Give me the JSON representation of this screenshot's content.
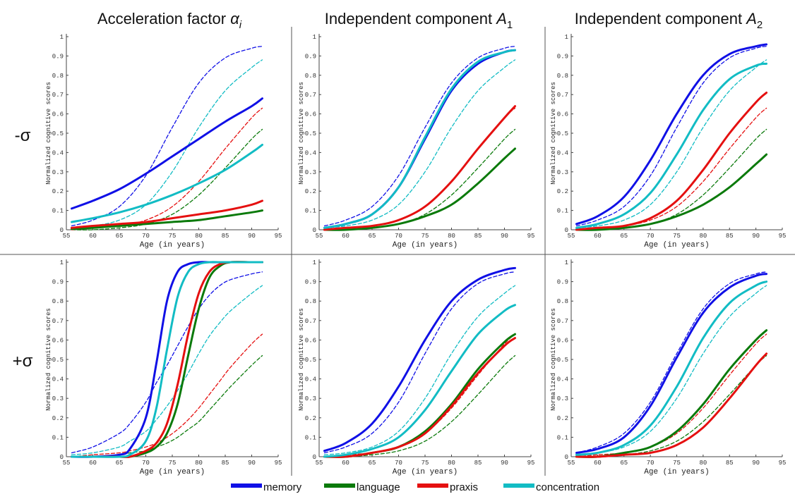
{
  "column_titles": [
    {
      "text": "Acceleration factor ",
      "symbol": "α",
      "sub": "i"
    },
    {
      "text": "Independent component ",
      "symbol": "A",
      "sub": "1"
    },
    {
      "text": "Independent component ",
      "symbol": "A",
      "sub": "2"
    }
  ],
  "row_labels": [
    "-σ",
    "+σ"
  ],
  "legend": [
    {
      "label": "memory",
      "color": "#1010e6"
    },
    {
      "label": "language",
      "color": "#0b7a0b"
    },
    {
      "label": "praxis",
      "color": "#e51010"
    },
    {
      "label": "concentration",
      "color": "#12bcc4"
    }
  ],
  "chart_data": [
    {
      "type": "line",
      "row": "-σ",
      "title": "Acceleration factor αi",
      "xlabel": "Age (in years)",
      "ylabel": "Normalized cognitive scores",
      "xlim": [
        55,
        95
      ],
      "ylim": [
        0,
        1
      ],
      "xticks": [
        "55",
        "60",
        "65",
        "70",
        "75",
        "80",
        "85",
        "90",
        "95"
      ],
      "yticks": [
        "0",
        "0.1",
        "0.2",
        "0.3",
        "0.4",
        "0.5",
        "0.6",
        "0.7",
        "0.8",
        "0.9",
        "1"
      ],
      "x": [
        56,
        60,
        65,
        70,
        75,
        80,
        85,
        90,
        92
      ],
      "series": [
        {
          "name": "memory",
          "style": "solid",
          "values": [
            0.11,
            0.15,
            0.21,
            0.29,
            0.38,
            0.47,
            0.56,
            0.64,
            0.68
          ]
        },
        {
          "name": "memory",
          "style": "dashed",
          "values": [
            0.02,
            0.05,
            0.12,
            0.28,
            0.53,
            0.76,
            0.89,
            0.94,
            0.95
          ]
        },
        {
          "name": "language",
          "style": "solid",
          "values": [
            0.005,
            0.01,
            0.02,
            0.03,
            0.04,
            0.05,
            0.07,
            0.09,
            0.1
          ]
        },
        {
          "name": "language",
          "style": "dashed",
          "values": [
            0.0,
            0.0,
            0.01,
            0.03,
            0.08,
            0.18,
            0.32,
            0.47,
            0.52
          ]
        },
        {
          "name": "praxis",
          "style": "solid",
          "values": [
            0.01,
            0.02,
            0.03,
            0.04,
            0.06,
            0.08,
            0.1,
            0.13,
            0.15
          ]
        },
        {
          "name": "praxis",
          "style": "dashed",
          "values": [
            0.0,
            0.01,
            0.02,
            0.05,
            0.12,
            0.25,
            0.42,
            0.58,
            0.63
          ]
        },
        {
          "name": "concentration",
          "style": "solid",
          "values": [
            0.04,
            0.06,
            0.09,
            0.13,
            0.18,
            0.24,
            0.31,
            0.4,
            0.44
          ]
        },
        {
          "name": "concentration",
          "style": "dashed",
          "values": [
            0.01,
            0.02,
            0.05,
            0.13,
            0.3,
            0.53,
            0.72,
            0.84,
            0.88
          ]
        }
      ]
    },
    {
      "type": "line",
      "row": "-σ",
      "title": "Independent component A1",
      "xlabel": "Age (in years)",
      "ylabel": "Normalized cognitive scores",
      "xlim": [
        55,
        95
      ],
      "ylim": [
        0,
        1
      ],
      "xticks": [
        "55",
        "60",
        "65",
        "70",
        "75",
        "80",
        "85",
        "90",
        "95"
      ],
      "yticks": [
        "0",
        "0.1",
        "0.2",
        "0.3",
        "0.4",
        "0.5",
        "0.6",
        "0.7",
        "0.8",
        "0.9",
        "1"
      ],
      "x": [
        56,
        60,
        65,
        70,
        75,
        80,
        85,
        90,
        92
      ],
      "series": [
        {
          "name": "memory",
          "style": "solid",
          "values": [
            0.01,
            0.03,
            0.08,
            0.22,
            0.47,
            0.72,
            0.86,
            0.92,
            0.93
          ]
        },
        {
          "name": "memory",
          "style": "dashed",
          "values": [
            0.02,
            0.05,
            0.12,
            0.28,
            0.53,
            0.76,
            0.89,
            0.94,
            0.95
          ]
        },
        {
          "name": "language",
          "style": "solid",
          "values": [
            0.0,
            0.0,
            0.01,
            0.03,
            0.07,
            0.13,
            0.24,
            0.37,
            0.42
          ]
        },
        {
          "name": "language",
          "style": "dashed",
          "values": [
            0.0,
            0.0,
            0.01,
            0.03,
            0.08,
            0.18,
            0.32,
            0.47,
            0.52
          ]
        },
        {
          "name": "praxis",
          "style": "solid",
          "values": [
            0.0,
            0.01,
            0.02,
            0.05,
            0.12,
            0.25,
            0.42,
            0.58,
            0.64
          ]
        },
        {
          "name": "praxis",
          "style": "dashed",
          "values": [
            0.0,
            0.01,
            0.02,
            0.05,
            0.12,
            0.25,
            0.42,
            0.58,
            0.63
          ]
        },
        {
          "name": "concentration",
          "style": "solid",
          "values": [
            0.01,
            0.03,
            0.08,
            0.22,
            0.48,
            0.73,
            0.87,
            0.92,
            0.93
          ]
        },
        {
          "name": "concentration",
          "style": "dashed",
          "values": [
            0.01,
            0.02,
            0.05,
            0.13,
            0.3,
            0.53,
            0.72,
            0.84,
            0.88
          ]
        }
      ]
    },
    {
      "type": "line",
      "row": "-σ",
      "title": "Independent component A2",
      "xlabel": "Age (in years)",
      "ylabel": "Normalized cognitive scores",
      "xlim": [
        55,
        95
      ],
      "ylim": [
        0,
        1
      ],
      "xticks": [
        "55",
        "60",
        "65",
        "70",
        "75",
        "80",
        "85",
        "90",
        "95"
      ],
      "yticks": [
        "0",
        "0.1",
        "0.2",
        "0.3",
        "0.4",
        "0.5",
        "0.6",
        "0.7",
        "0.8",
        "0.9",
        "1"
      ],
      "x": [
        56,
        60,
        65,
        70,
        75,
        80,
        85,
        90,
        92
      ],
      "series": [
        {
          "name": "memory",
          "style": "solid",
          "values": [
            0.03,
            0.07,
            0.17,
            0.36,
            0.6,
            0.8,
            0.91,
            0.95,
            0.96
          ]
        },
        {
          "name": "memory",
          "style": "dashed",
          "values": [
            0.02,
            0.05,
            0.12,
            0.28,
            0.53,
            0.76,
            0.89,
            0.94,
            0.95
          ]
        },
        {
          "name": "language",
          "style": "solid",
          "values": [
            0.0,
            0.0,
            0.01,
            0.03,
            0.07,
            0.13,
            0.22,
            0.34,
            0.39
          ]
        },
        {
          "name": "language",
          "style": "dashed",
          "values": [
            0.0,
            0.0,
            0.01,
            0.03,
            0.08,
            0.18,
            0.32,
            0.47,
            0.52
          ]
        },
        {
          "name": "praxis",
          "style": "solid",
          "values": [
            0.0,
            0.01,
            0.02,
            0.06,
            0.15,
            0.31,
            0.5,
            0.66,
            0.71
          ]
        },
        {
          "name": "praxis",
          "style": "dashed",
          "values": [
            0.0,
            0.01,
            0.02,
            0.05,
            0.12,
            0.25,
            0.42,
            0.58,
            0.63
          ]
        },
        {
          "name": "concentration",
          "style": "solid",
          "values": [
            0.01,
            0.03,
            0.08,
            0.19,
            0.39,
            0.62,
            0.78,
            0.85,
            0.86
          ]
        },
        {
          "name": "concentration",
          "style": "dashed",
          "values": [
            0.01,
            0.02,
            0.05,
            0.13,
            0.3,
            0.53,
            0.72,
            0.84,
            0.88
          ]
        }
      ]
    },
    {
      "type": "line",
      "row": "+σ",
      "title": "Acceleration factor αi",
      "xlabel": "Age (in years)",
      "ylabel": "Normalized cognitive scores",
      "xlim": [
        55,
        95
      ],
      "ylim": [
        0,
        1
      ],
      "xticks": [
        "55",
        "60",
        "65",
        "70",
        "75",
        "80",
        "85",
        "90",
        "95"
      ],
      "yticks": [
        "0",
        "0.1",
        "0.2",
        "0.3",
        "0.4",
        "0.5",
        "0.6",
        "0.7",
        "0.8",
        "0.9",
        "1"
      ],
      "x": [
        56,
        60,
        65,
        67,
        70,
        72,
        74,
        76,
        78,
        80,
        82,
        84,
        86,
        90,
        92
      ],
      "series": [
        {
          "name": "memory",
          "style": "solid",
          "values": [
            0.0,
            0.0,
            0.01,
            0.04,
            0.2,
            0.48,
            0.8,
            0.95,
            0.99,
            1.0,
            1.0,
            1.0,
            1.0,
            1.0,
            1.0
          ]
        },
        {
          "name": "memory",
          "style": "dashed",
          "values": [
            0.02,
            0.05,
            0.12,
            0.17,
            0.28,
            0.38,
            0.47,
            0.57,
            0.67,
            0.76,
            0.83,
            0.88,
            0.91,
            0.94,
            0.95
          ]
        },
        {
          "name": "language",
          "style": "solid",
          "values": [
            0.0,
            0.0,
            0.0,
            0.0,
            0.02,
            0.05,
            0.12,
            0.27,
            0.52,
            0.76,
            0.92,
            0.98,
            1.0,
            1.0,
            1.0
          ]
        },
        {
          "name": "language",
          "style": "dashed",
          "values": [
            0.0,
            0.0,
            0.01,
            0.02,
            0.03,
            0.05,
            0.07,
            0.1,
            0.14,
            0.18,
            0.24,
            0.3,
            0.36,
            0.47,
            0.52
          ]
        },
        {
          "name": "praxis",
          "style": "solid",
          "values": [
            0.0,
            0.0,
            0.0,
            0.0,
            0.03,
            0.07,
            0.17,
            0.37,
            0.63,
            0.84,
            0.95,
            0.99,
            1.0,
            1.0,
            1.0
          ]
        },
        {
          "name": "praxis",
          "style": "dashed",
          "values": [
            0.0,
            0.01,
            0.02,
            0.03,
            0.05,
            0.07,
            0.1,
            0.14,
            0.19,
            0.25,
            0.32,
            0.39,
            0.46,
            0.58,
            0.63
          ]
        },
        {
          "name": "concentration",
          "style": "solid",
          "values": [
            0.0,
            0.0,
            0.0,
            0.01,
            0.08,
            0.25,
            0.55,
            0.82,
            0.95,
            0.99,
            1.0,
            1.0,
            1.0,
            1.0,
            1.0
          ]
        },
        {
          "name": "concentration",
          "style": "dashed",
          "values": [
            0.01,
            0.02,
            0.05,
            0.08,
            0.13,
            0.19,
            0.26,
            0.34,
            0.43,
            0.53,
            0.62,
            0.69,
            0.75,
            0.84,
            0.88
          ]
        }
      ]
    },
    {
      "type": "line",
      "row": "+σ",
      "title": "Independent component A1",
      "xlabel": "Age (in years)",
      "ylabel": "Normalized cognitive scores",
      "xlim": [
        55,
        95
      ],
      "ylim": [
        0,
        1
      ],
      "xticks": [
        "55",
        "60",
        "65",
        "70",
        "75",
        "80",
        "85",
        "90",
        "95"
      ],
      "yticks": [
        "0",
        "0.1",
        "0.2",
        "0.3",
        "0.4",
        "0.5",
        "0.6",
        "0.7",
        "0.8",
        "0.9",
        "1"
      ],
      "x": [
        56,
        60,
        65,
        70,
        75,
        80,
        85,
        90,
        92
      ],
      "series": [
        {
          "name": "memory",
          "style": "solid",
          "values": [
            0.03,
            0.07,
            0.17,
            0.36,
            0.6,
            0.8,
            0.91,
            0.96,
            0.97
          ]
        },
        {
          "name": "memory",
          "style": "dashed",
          "values": [
            0.02,
            0.05,
            0.12,
            0.28,
            0.53,
            0.76,
            0.89,
            0.94,
            0.95
          ]
        },
        {
          "name": "language",
          "style": "solid",
          "values": [
            0.0,
            0.0,
            0.02,
            0.05,
            0.13,
            0.27,
            0.45,
            0.59,
            0.63
          ]
        },
        {
          "name": "language",
          "style": "dashed",
          "values": [
            0.0,
            0.0,
            0.01,
            0.03,
            0.08,
            0.18,
            0.32,
            0.47,
            0.52
          ]
        },
        {
          "name": "praxis",
          "style": "solid",
          "values": [
            0.0,
            0.0,
            0.02,
            0.05,
            0.12,
            0.26,
            0.43,
            0.57,
            0.61
          ]
        },
        {
          "name": "praxis",
          "style": "dashed",
          "values": [
            0.0,
            0.01,
            0.02,
            0.05,
            0.12,
            0.25,
            0.42,
            0.58,
            0.63
          ]
        },
        {
          "name": "concentration",
          "style": "solid",
          "values": [
            0.0,
            0.01,
            0.04,
            0.1,
            0.24,
            0.44,
            0.63,
            0.75,
            0.78
          ]
        },
        {
          "name": "concentration",
          "style": "dashed",
          "values": [
            0.01,
            0.02,
            0.05,
            0.13,
            0.3,
            0.53,
            0.72,
            0.84,
            0.88
          ]
        }
      ]
    },
    {
      "type": "line",
      "row": "+σ",
      "title": "Independent component A2",
      "xlabel": "Age (in years)",
      "ylabel": "Normalized cognitive scores",
      "xlim": [
        55,
        95
      ],
      "ylim": [
        0,
        1
      ],
      "xticks": [
        "55",
        "60",
        "65",
        "70",
        "75",
        "80",
        "85",
        "90",
        "95"
      ],
      "yticks": [
        "0",
        "0.1",
        "0.2",
        "0.3",
        "0.4",
        "0.5",
        "0.6",
        "0.7",
        "0.8",
        "0.9",
        "1"
      ],
      "x": [
        56,
        60,
        65,
        70,
        75,
        80,
        85,
        90,
        92
      ],
      "series": [
        {
          "name": "memory",
          "style": "solid",
          "values": [
            0.02,
            0.04,
            0.1,
            0.26,
            0.51,
            0.74,
            0.87,
            0.93,
            0.94
          ]
        },
        {
          "name": "memory",
          "style": "dashed",
          "values": [
            0.02,
            0.05,
            0.12,
            0.28,
            0.53,
            0.76,
            0.89,
            0.94,
            0.95
          ]
        },
        {
          "name": "language",
          "style": "solid",
          "values": [
            0.0,
            0.0,
            0.02,
            0.05,
            0.13,
            0.27,
            0.45,
            0.6,
            0.65
          ]
        },
        {
          "name": "language",
          "style": "dashed",
          "values": [
            0.0,
            0.0,
            0.01,
            0.03,
            0.08,
            0.18,
            0.32,
            0.47,
            0.52
          ]
        },
        {
          "name": "praxis",
          "style": "solid",
          "values": [
            0.0,
            0.0,
            0.01,
            0.02,
            0.06,
            0.15,
            0.3,
            0.47,
            0.53
          ]
        },
        {
          "name": "praxis",
          "style": "dashed",
          "values": [
            0.0,
            0.01,
            0.02,
            0.05,
            0.12,
            0.25,
            0.42,
            0.58,
            0.63
          ]
        },
        {
          "name": "concentration",
          "style": "solid",
          "values": [
            0.01,
            0.02,
            0.06,
            0.16,
            0.36,
            0.61,
            0.79,
            0.88,
            0.9
          ]
        },
        {
          "name": "concentration",
          "style": "dashed",
          "values": [
            0.01,
            0.02,
            0.05,
            0.13,
            0.3,
            0.53,
            0.72,
            0.84,
            0.88
          ]
        }
      ]
    }
  ]
}
